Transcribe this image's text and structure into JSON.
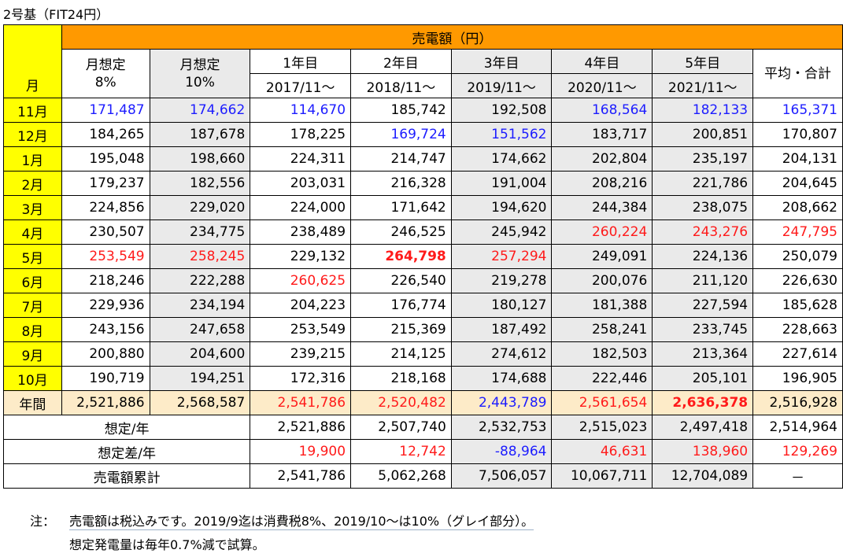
{
  "title": "2号基（FIT24円）",
  "header": {
    "month": "月",
    "sales": "売電額（円）",
    "cols": [
      {
        "line1": "月想定",
        "line2": "8%"
      },
      {
        "line1": "月想定",
        "line2": "10%"
      },
      {
        "line1": "1年目",
        "line2": "2017/11～"
      },
      {
        "line1": "2年目",
        "line2": "2018/11～"
      },
      {
        "line1": "3年目",
        "line2": "2019/11～"
      },
      {
        "line1": "4年目",
        "line2": "2020/11～"
      },
      {
        "line1": "5年目",
        "line2": "2021/11～"
      },
      {
        "line1": "平均・合計",
        "line2": ""
      }
    ]
  },
  "rows": [
    {
      "month": "11月",
      "values": [
        "171,487",
        "174,662",
        "114,670",
        "185,742",
        "192,508",
        "168,564",
        "182,133",
        "165,371"
      ]
    },
    {
      "month": "12月",
      "values": [
        "184,265",
        "187,678",
        "178,225",
        "169,724",
        "151,562",
        "183,717",
        "200,851",
        "170,807"
      ]
    },
    {
      "month": "1月",
      "values": [
        "195,048",
        "198,660",
        "224,311",
        "214,747",
        "174,662",
        "202,804",
        "235,197",
        "204,131"
      ]
    },
    {
      "month": "2月",
      "values": [
        "179,237",
        "182,556",
        "203,031",
        "216,328",
        "191,004",
        "208,216",
        "221,786",
        "204,645"
      ]
    },
    {
      "month": "3月",
      "values": [
        "224,856",
        "229,020",
        "224,000",
        "171,642",
        "194,620",
        "244,384",
        "238,075",
        "208,662"
      ]
    },
    {
      "month": "4月",
      "values": [
        "230,507",
        "234,775",
        "238,489",
        "246,525",
        "245,942",
        "260,224",
        "243,276",
        "247,795"
      ]
    },
    {
      "month": "5月",
      "values": [
        "253,549",
        "258,245",
        "229,132",
        "264,798",
        "257,294",
        "249,091",
        "224,136",
        "250,079"
      ]
    },
    {
      "month": "6月",
      "values": [
        "218,246",
        "222,288",
        "260,625",
        "226,540",
        "219,278",
        "200,076",
        "211,120",
        "226,630"
      ]
    },
    {
      "month": "7月",
      "values": [
        "229,936",
        "234,194",
        "204,223",
        "176,774",
        "180,127",
        "181,388",
        "227,594",
        "185,628"
      ]
    },
    {
      "month": "8月",
      "values": [
        "243,156",
        "247,658",
        "253,549",
        "215,369",
        "187,492",
        "258,241",
        "233,745",
        "228,663"
      ]
    },
    {
      "month": "9月",
      "values": [
        "200,880",
        "204,600",
        "239,215",
        "214,125",
        "274,612",
        "182,503",
        "213,364",
        "227,614"
      ]
    },
    {
      "month": "10月",
      "values": [
        "190,719",
        "194,251",
        "172,316",
        "218,168",
        "174,688",
        "222,446",
        "205,101",
        "196,905"
      ]
    }
  ],
  "annual": {
    "label": "年間",
    "values": [
      "2,521,886",
      "2,568,587",
      "2,541,786",
      "2,520,482",
      "2,443,789",
      "2,561,654",
      "2,636,378",
      "2,516,928"
    ]
  },
  "summary": [
    {
      "label": "想定/年",
      "values": [
        "2,521,886",
        "2,507,740",
        "2,532,753",
        "2,515,023",
        "2,497,418",
        "2,514,964"
      ]
    },
    {
      "label": "想定差/年",
      "values": [
        "19,900",
        "12,742",
        "-88,964",
        "46,631",
        "138,960",
        "129,269"
      ]
    },
    {
      "label": "売電額累計",
      "values": [
        "2,541,786",
        "5,062,268",
        "7,506,057",
        "10,067,711",
        "12,704,089",
        "－"
      ]
    }
  ],
  "notes": {
    "label": "注：",
    "line1": "売電額は税込みです。2019/9迄は消費税8%、2019/10～は10%（グレイ部分）。",
    "line2": "想定発電量は毎年0.7%減で試算。"
  },
  "colors": {
    "blue": "#1c1cff",
    "red": "#ff1a1a",
    "header_orange": "#ff9900",
    "month_yellow": "#ffff00",
    "gray_cell": "#eaeaea",
    "annual_tan": "#fdebc8"
  }
}
